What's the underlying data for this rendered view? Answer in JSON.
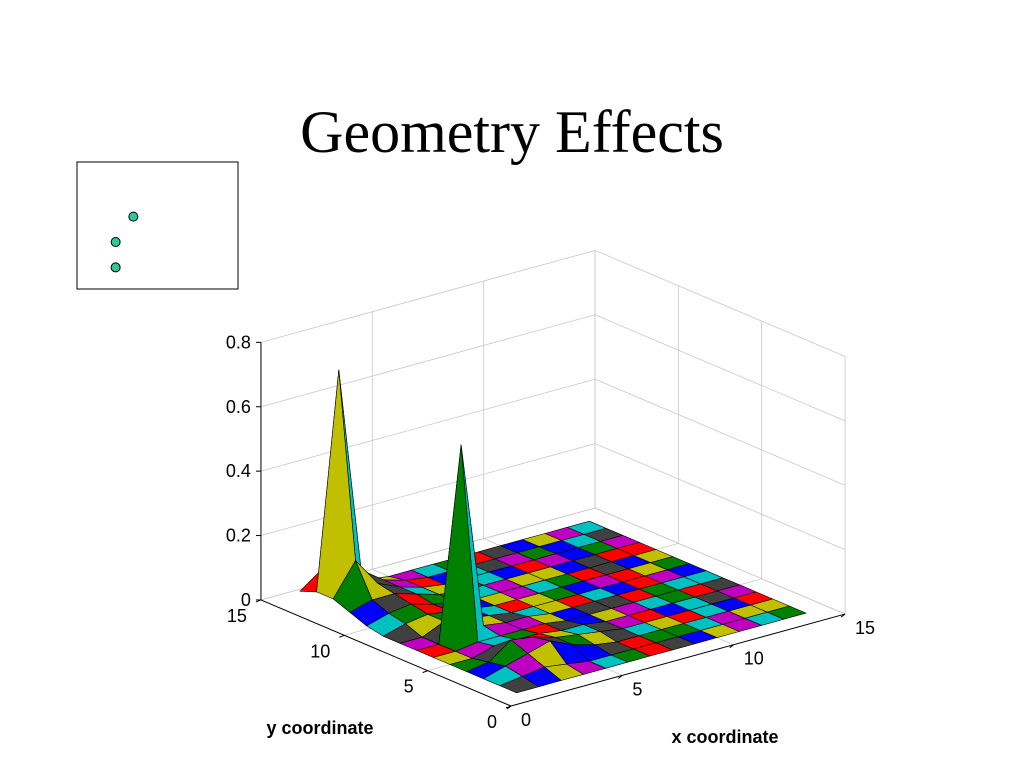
{
  "slide": {
    "title": "Geometry Effects"
  },
  "inset": {
    "marker_color": "#2ec99a",
    "points": [
      {
        "x": 0.35,
        "y": 0.57
      },
      {
        "x": 0.24,
        "y": 0.37
      },
      {
        "x": 0.24,
        "y": 0.17
      }
    ]
  },
  "chart_data": {
    "type": "surface",
    "xlabel": "x coordinate",
    "ylabel": "y coordinate",
    "zlabel": "",
    "xlim": [
      0,
      15
    ],
    "ylim": [
      0,
      15
    ],
    "zlim": [
      0,
      0.8
    ],
    "x_ticks": [
      "0",
      "5",
      "10",
      "15"
    ],
    "y_ticks": [
      "0",
      "5",
      "10",
      "15"
    ],
    "z_ticks": [
      "0",
      "0.2",
      "0.4",
      "0.6",
      "0.8"
    ],
    "grid": true,
    "face_colors": [
      "#404040",
      "#008000",
      "#c000c0",
      "#0000ff",
      "#ff0000",
      "#00c0c0",
      "#c0c000"
    ],
    "surface": {
      "x": [
        1,
        2,
        3,
        4,
        5,
        6,
        7,
        8,
        9,
        10,
        11,
        12,
        13,
        14
      ],
      "y": [
        1,
        2,
        3,
        4,
        5,
        6,
        7,
        8,
        9,
        10,
        11,
        12,
        13,
        14
      ],
      "z": [
        [
          0.0,
          0.0,
          0.0,
          0.0,
          0.0,
          0.0,
          0.0,
          0.0,
          0.0,
          0.0,
          0.0,
          0.0,
          0.0,
          0.0
        ],
        [
          0.0,
          0.01,
          0.02,
          0.01,
          0.0,
          0.0,
          0.0,
          0.0,
          0.0,
          0.0,
          0.0,
          0.0,
          0.0,
          0.0
        ],
        [
          0.0,
          0.02,
          0.04,
          0.06,
          0.03,
          0.01,
          0.0,
          0.0,
          0.0,
          0.0,
          0.0,
          0.0,
          0.0,
          0.0
        ],
        [
          0.0,
          0.01,
          0.06,
          0.05,
          0.03,
          0.02,
          0.01,
          0.0,
          0.0,
          0.0,
          0.0,
          0.0,
          0.0,
          0.0
        ],
        [
          0.0,
          0.0,
          0.02,
          0.02,
          0.02,
          0.01,
          0.01,
          0.0,
          0.0,
          0.0,
          0.0,
          0.0,
          0.0,
          0.0
        ],
        [
          0.0,
          0.0,
          0.01,
          0.01,
          0.01,
          0.01,
          0.0,
          0.0,
          0.0,
          0.0,
          0.0,
          0.0,
          0.0,
          0.0
        ],
        [
          0.0,
          0.0,
          0.6,
          0.02,
          0.01,
          0.01,
          0.0,
          0.0,
          0.0,
          0.0,
          0.0,
          0.0,
          0.0,
          0.0
        ],
        [
          0.0,
          0.0,
          0.03,
          0.02,
          0.01,
          0.0,
          0.0,
          0.0,
          0.0,
          0.0,
          0.0,
          0.0,
          0.0,
          0.0
        ],
        [
          0.0,
          0.02,
          0.03,
          0.02,
          0.01,
          0.0,
          0.0,
          0.0,
          0.0,
          0.0,
          0.0,
          0.0,
          0.0,
          0.0
        ],
        [
          0.01,
          0.03,
          0.04,
          0.02,
          0.01,
          0.0,
          0.0,
          0.0,
          0.0,
          0.0,
          0.0,
          0.0,
          0.0,
          0.0
        ],
        [
          0.03,
          0.05,
          0.05,
          0.03,
          0.01,
          0.0,
          0.0,
          0.0,
          0.0,
          0.0,
          0.0,
          0.0,
          0.0,
          0.0
        ],
        [
          0.05,
          0.15,
          0.06,
          0.03,
          0.01,
          0.0,
          0.0,
          0.0,
          0.0,
          0.0,
          0.0,
          0.0,
          0.0,
          0.0
        ],
        [
          0.05,
          0.72,
          0.08,
          0.03,
          0.01,
          0.0,
          0.0,
          0.0,
          0.0,
          0.0,
          0.0,
          0.0,
          0.0,
          0.0
        ],
        [
          0.03,
          0.08,
          0.04,
          0.01,
          0.0,
          0.0,
          0.0,
          0.0,
          0.0,
          0.0,
          0.0,
          0.0,
          0.0,
          0.0
        ]
      ]
    }
  }
}
